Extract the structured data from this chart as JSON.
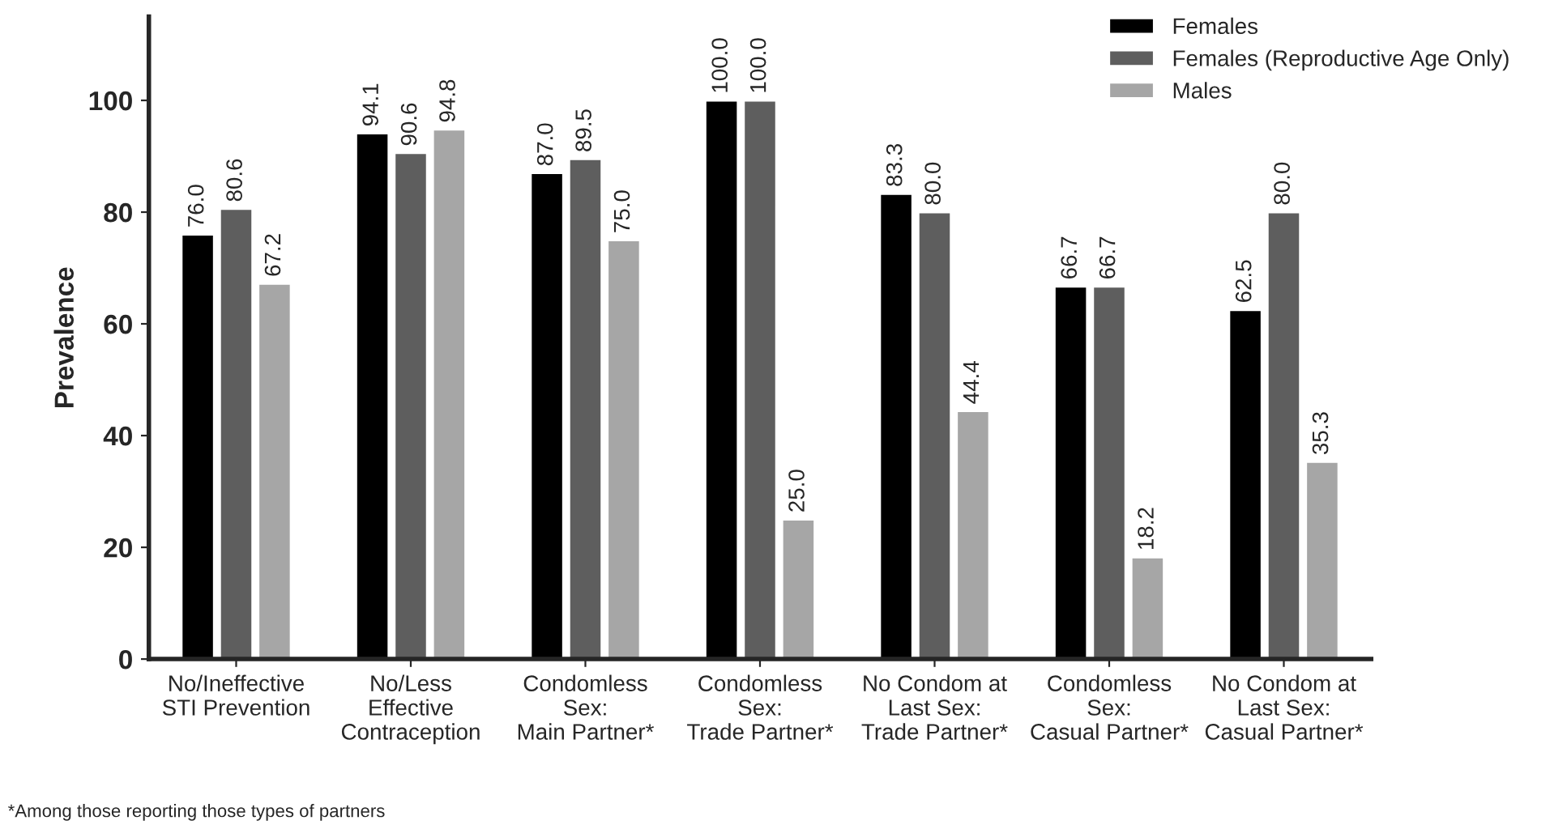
{
  "chart_data": {
    "type": "bar",
    "ylabel": "Prevalence",
    "categories": [
      "No/Ineffective\nSTI Prevention",
      "No/Less\nEffective\nContraception",
      "Condomless\nSex:\nMain Partner*",
      "Condomless\nSex:\nTrade Partner*",
      "No Condom at\nLast Sex:\nTrade Partner*",
      "Condomless\nSex:\nCasual Partner*",
      "No Condom at\nLast Sex:\nCasual Partner*"
    ],
    "series": [
      {
        "name": "Females",
        "color": "#000000",
        "values": [
          76.0,
          94.1,
          87.0,
          100.0,
          83.3,
          66.7,
          62.5
        ],
        "value_labels": [
          "76.0",
          "94.1",
          "87.0",
          "100.0",
          "83.3",
          "66.7",
          "62.5"
        ]
      },
      {
        "name": "Females (Reproductive Age Only)",
        "color": "#5e5e5e",
        "values": [
          80.6,
          90.6,
          89.5,
          100.0,
          80.0,
          66.7,
          80.0
        ],
        "value_labels": [
          "80.6",
          "90.6",
          "89.5",
          "100.0",
          "80.0",
          "66.7",
          "80.0"
        ]
      },
      {
        "name": "Males",
        "color": "#a6a6a6",
        "values": [
          67.2,
          94.8,
          75.0,
          25.0,
          44.4,
          18.2,
          35.3
        ],
        "value_labels": [
          "67.2",
          "94.8",
          "75.0",
          "25.0",
          "44.4",
          "18.2",
          "35.3"
        ]
      }
    ],
    "ylim": [
      0,
      115
    ],
    "yticks": [
      0,
      20,
      40,
      60,
      80,
      100
    ],
    "grid": false,
    "legend": "top right",
    "annotations": [
      "*Among those reporting those types of partners"
    ]
  }
}
